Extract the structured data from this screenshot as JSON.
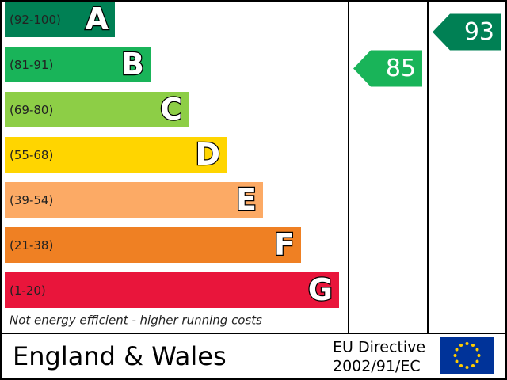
{
  "bands": [
    {
      "range": "(92-100)",
      "letter": "A",
      "color": "#008054"
    },
    {
      "range": "(81-91)",
      "letter": "B",
      "color": "#19b459"
    },
    {
      "range": "(69-80)",
      "letter": "C",
      "color": "#8dce46"
    },
    {
      "range": "(55-68)",
      "letter": "D",
      "color": "#ffd500"
    },
    {
      "range": "(39-54)",
      "letter": "E",
      "color": "#fcaa65"
    },
    {
      "range": "(21-38)",
      "letter": "F",
      "color": "#ef8023"
    },
    {
      "range": "(1-20)",
      "letter": "G",
      "color": "#e9153b"
    }
  ],
  "footer_note": "Not energy efficient - higher running costs",
  "region": "England & Wales",
  "directive": {
    "line1": "EU Directive",
    "line2": "2002/91/EC"
  },
  "current": 85,
  "potential": 93
}
